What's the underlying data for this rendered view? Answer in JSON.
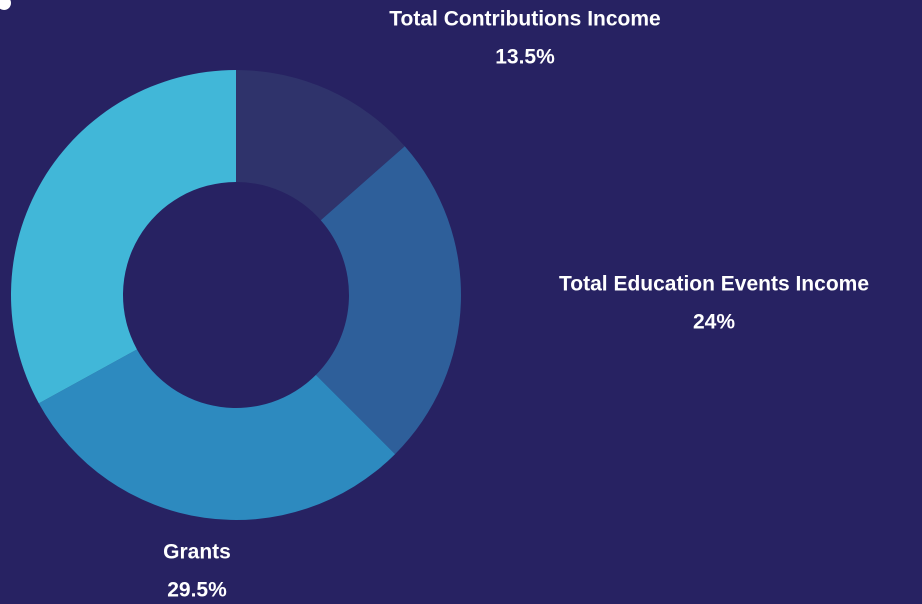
{
  "chart_data": {
    "type": "donut",
    "categories": [
      "Total Contributions Income",
      "Total Education Events Income",
      "Grants",
      null
    ],
    "values": [
      13.5,
      24,
      29.5,
      33
    ],
    "value_labels": [
      "13.5%",
      "24%",
      "29.5%",
      null
    ],
    "colors": [
      "#2f336b",
      "#2e5f9a",
      "#2d8abf",
      "#41b7d8"
    ]
  }
}
